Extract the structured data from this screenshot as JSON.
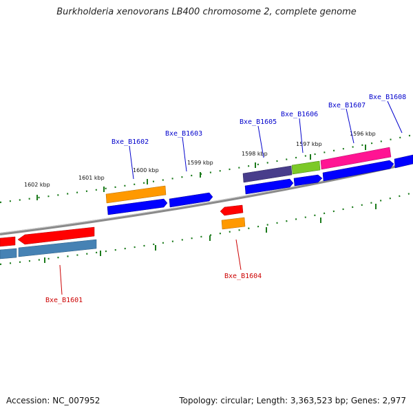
{
  "title": "Burkholderia xenovorans LB400 chromosome 2, complete genome",
  "accession": "Accession: NC_007952",
  "summary": "Topology: circular; Length: 3,363,523 bp; Genes: 2,977",
  "ticks": [
    {
      "label": "1602 kbp"
    },
    {
      "label": "1601 kbp"
    },
    {
      "label": "1600 kbp"
    },
    {
      "label": "1599 kbp"
    },
    {
      "label": "1598 kbp"
    },
    {
      "label": "1597 kbp"
    },
    {
      "label": "1596 kbp"
    }
  ],
  "genes": [
    {
      "id": "Bxe_B1601",
      "color": "#cc0000"
    },
    {
      "id": "Bxe_B1602",
      "color": "#0000cc"
    },
    {
      "id": "Bxe_B1603",
      "color": "#0000cc"
    },
    {
      "id": "Bxe_B1604",
      "color": "#cc0000"
    },
    {
      "id": "Bxe_B1605",
      "color": "#0000cc"
    },
    {
      "id": "Bxe_B1606",
      "color": "#0000cc"
    },
    {
      "id": "Bxe_B1607",
      "color": "#0000cc"
    },
    {
      "id": "Bxe_B1608",
      "color": "#0000cc"
    }
  ]
}
